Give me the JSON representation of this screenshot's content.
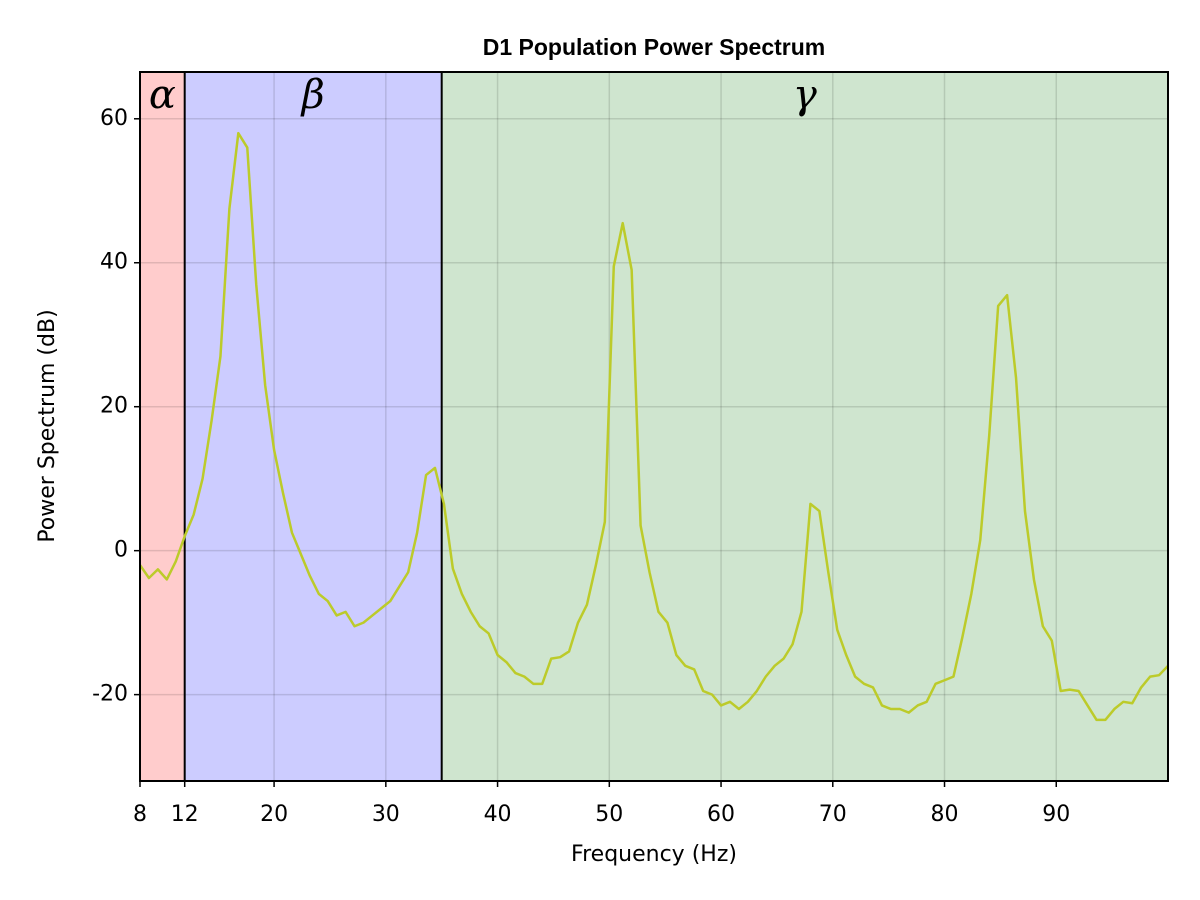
{
  "chart_data": {
    "type": "line",
    "title": "D1 Population Power Spectrum",
    "x_label": "Frequency (Hz)",
    "y_label": "Power Spectrum (dB)",
    "xlim": [
      8,
      100
    ],
    "ylim": [
      -32,
      66.5
    ],
    "xticks": [
      8,
      12,
      20,
      30,
      40,
      50,
      60,
      70,
      80,
      90
    ],
    "yticks": [
      -20,
      0,
      20,
      40,
      60
    ],
    "grid": true,
    "bands": [
      {
        "label": "α",
        "start": 8,
        "end": 12,
        "color": "#ffcccc"
      },
      {
        "label": "β",
        "start": 12,
        "end": 35,
        "color": "#ccccff"
      },
      {
        "label": "γ",
        "start": 35,
        "end": 100,
        "color": "#cfe5cf"
      }
    ],
    "x": [
      8,
      8.8,
      9.6,
      10.4,
      11.2,
      12,
      12.8,
      13.6,
      14.4,
      15.2,
      16,
      16.8,
      17.6,
      18.4,
      19.2,
      20,
      20.8,
      21.6,
      22.4,
      23.2,
      24,
      24.8,
      25.6,
      26.4,
      27.2,
      28,
      28.8,
      29.6,
      30.4,
      31.2,
      32,
      32.8,
      33.6,
      34.4,
      35.2,
      36,
      36.8,
      37.6,
      38.4,
      39.2,
      40,
      40.8,
      41.6,
      42.4,
      43.2,
      44,
      44.8,
      45.6,
      46.4,
      47.2,
      48,
      48.8,
      49.6,
      50.4,
      51.2,
      52,
      52.8,
      53.6,
      54.4,
      55.2,
      56,
      56.8,
      57.6,
      58.4,
      59.2,
      60,
      60.8,
      61.6,
      62.4,
      63.2,
      64,
      64.8,
      65.6,
      66.4,
      67.2,
      68,
      68.8,
      69.6,
      70.4,
      71.2,
      72,
      72.8,
      73.6,
      74.4,
      75.2,
      76,
      76.8,
      77.6,
      78.4,
      79.2,
      80,
      80.8,
      81.6,
      82.4,
      83.2,
      84,
      84.8,
      85.6,
      86.4,
      87.2,
      88,
      88.8,
      89.6,
      90.4,
      91.2,
      92,
      92.8,
      93.6,
      94.4,
      95.2,
      96,
      96.8,
      97.6,
      98.4,
      99.2,
      100
    ],
    "series": [
      {
        "color": "#bccb2a",
        "values": [
          -2,
          -3.8,
          -2.6,
          -4,
          -1.5,
          2,
          5,
          10,
          18,
          27,
          47.5,
          58,
          56,
          37,
          23,
          14,
          8,
          2.5,
          -0.5,
          -3.5,
          -6,
          -7,
          -9,
          -8.5,
          -10.5,
          -10,
          -9,
          -8,
          -7,
          -5,
          -3,
          2.5,
          10.5,
          11.5,
          6.5,
          -2.5,
          -6,
          -8.5,
          -10.5,
          -11.5,
          -14.5,
          -15.5,
          -17,
          -17.5,
          -18.5,
          -18.5,
          -15,
          -14.8,
          -14,
          -10,
          -7.5,
          -2,
          4,
          39.5,
          45.5,
          39,
          3.5,
          -3,
          -8.5,
          -10,
          -14.5,
          -16,
          -16.5,
          -19.5,
          -20,
          -21.5,
          -21,
          -22,
          -21,
          -19.5,
          -17.5,
          -16,
          -15,
          -13,
          -8.5,
          6.5,
          5.5,
          -3,
          -11,
          -14.5,
          -17.5,
          -18.5,
          -19,
          -21.5,
          -22,
          -22,
          -22.5,
          -21.5,
          -21,
          -18.5,
          -18,
          -17.5,
          -12,
          -6,
          1.5,
          16,
          34,
          35.5,
          24,
          5.5,
          -4,
          -10.5,
          -12.5,
          -19.5,
          -19.3,
          -19.5,
          -21.5,
          -23.5,
          -23.5,
          -22,
          -21,
          -21.2,
          -19,
          -17.5,
          -17.3,
          -16
        ]
      }
    ]
  }
}
